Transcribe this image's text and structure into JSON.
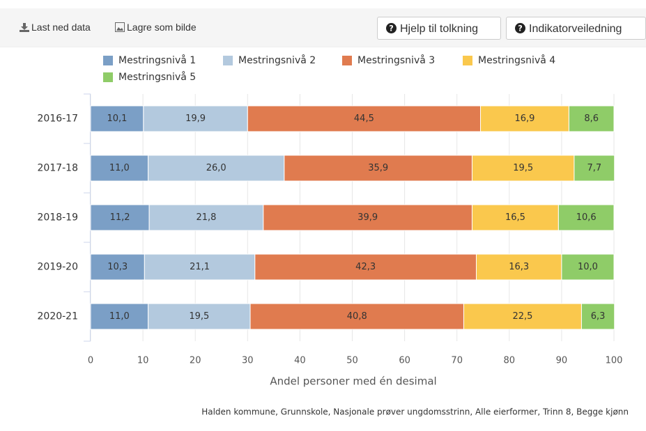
{
  "toolbar": {
    "download": "Last ned data",
    "save_image": "Lagre som bilde",
    "help": "Hjelp til tolkning",
    "guide": "Indikatorveiledning"
  },
  "chart_data": {
    "type": "stacked_barh",
    "categories": [
      "2016-17",
      "2017-18",
      "2018-19",
      "2019-20",
      "2020-21"
    ],
    "series": [
      {
        "name": "Mestringsnivå 1",
        "color": "#7b9fc6",
        "values": [
          10.1,
          11.0,
          11.2,
          10.3,
          11.0
        ],
        "value_labels": [
          "10,1",
          "11,0",
          "11,2",
          "10,3",
          "11,0"
        ]
      },
      {
        "name": "Mestringsnivå 2",
        "color": "#b3c9de",
        "values": [
          19.9,
          26.0,
          21.8,
          21.1,
          19.5
        ],
        "value_labels": [
          "19,9",
          "26,0",
          "21,8",
          "21,1",
          "19,5"
        ]
      },
      {
        "name": "Mestringsnivå 3",
        "color": "#e07b4f",
        "values": [
          44.5,
          35.9,
          39.9,
          42.3,
          40.8
        ],
        "value_labels": [
          "44,5",
          "35,9",
          "39,9",
          "42,3",
          "40,8"
        ]
      },
      {
        "name": "Mestringsnivå 4",
        "color": "#fac84d",
        "values": [
          16.9,
          19.5,
          16.5,
          16.3,
          22.5
        ],
        "value_labels": [
          "16,9",
          "19,5",
          "16,5",
          "16,3",
          "22,5"
        ]
      },
      {
        "name": "Mestringsnivå 5",
        "color": "#8fcc68",
        "values": [
          8.6,
          7.7,
          10.6,
          10.0,
          6.3
        ],
        "value_labels": [
          "8,6",
          "7,7",
          "10,6",
          "10,0",
          "6,3"
        ]
      }
    ],
    "xlim": [
      0,
      100
    ],
    "xticks": [
      0,
      10,
      20,
      30,
      40,
      50,
      60,
      70,
      80,
      90,
      100
    ],
    "xlabel": "Andel personer med én desimal",
    "caption": "Halden kommune, Grunnskole, Nasjonale prøver ungdomsstrinn, Alle eierformer, Trinn 8, Begge kjønn",
    "grid": true,
    "legend": "top"
  }
}
